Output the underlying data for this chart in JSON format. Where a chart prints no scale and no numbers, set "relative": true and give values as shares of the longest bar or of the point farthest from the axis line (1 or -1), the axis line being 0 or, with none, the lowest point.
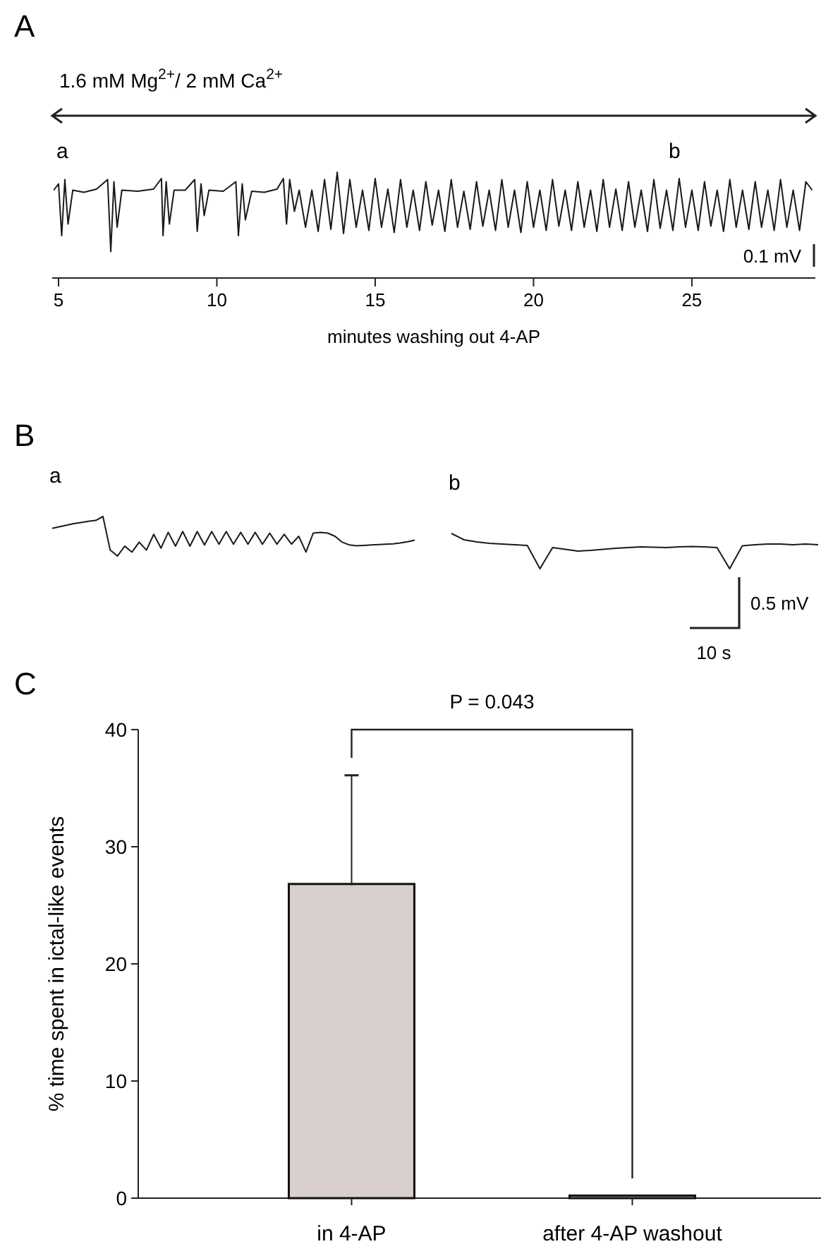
{
  "chart_data": [
    {
      "type": "line",
      "title": "A",
      "xlabel": "minutes washing out 4-AP",
      "relative": true,
      "xlim": [
        4.8,
        28.9
      ],
      "xticks": [
        5,
        10,
        15,
        20,
        25
      ],
      "annotations": [
        "1.6 mM Mg$^{2+}$/ 2 mM Ca$^{2+}$",
        "a",
        "b",
        "0.1 mV"
      ],
      "x": [
        4.85,
        5.0,
        5.1,
        5.2,
        5.3,
        5.45,
        5.8,
        6.2,
        6.55,
        6.65,
        6.75,
        6.85,
        7.0,
        7.5,
        8.0,
        8.25,
        8.3,
        8.4,
        8.5,
        8.65,
        9.0,
        9.3,
        9.38,
        9.5,
        9.6,
        9.75,
        10.2,
        10.6,
        10.68,
        10.8,
        10.9,
        11.1,
        11.5,
        11.9,
        12.1,
        12.2,
        12.3,
        12.45,
        12.6,
        12.8,
        13.0,
        13.2,
        13.4,
        13.6,
        13.8,
        14.0,
        14.2,
        14.4,
        14.6,
        14.8,
        15.0,
        15.2,
        15.4,
        15.6,
        15.8,
        16.0,
        16.2,
        16.4,
        16.6,
        16.8,
        17.0,
        17.2,
        17.4,
        17.6,
        17.8,
        18.0,
        18.2,
        18.4,
        18.6,
        18.8,
        19.0,
        19.2,
        19.4,
        19.6,
        19.8,
        20.0,
        20.2,
        20.4,
        20.6,
        20.8,
        21.0,
        21.2,
        21.4,
        21.6,
        21.8,
        22.0,
        22.2,
        22.4,
        22.6,
        22.8,
        23.0,
        23.2,
        23.4,
        23.6,
        23.8,
        24.0,
        24.2,
        24.4,
        24.6,
        24.8,
        25.0,
        25.2,
        25.4,
        25.6,
        25.8,
        26.0,
        26.2,
        26.4,
        26.6,
        26.8,
        27.0,
        27.2,
        27.4,
        27.6,
        27.8,
        28.0,
        28.2,
        28.4,
        28.6,
        28.8
      ],
      "values": [
        0.83,
        0.89,
        0.4,
        0.93,
        0.51,
        0.83,
        0.81,
        0.84,
        0.93,
        0.25,
        0.91,
        0.48,
        0.83,
        0.82,
        0.84,
        0.94,
        0.4,
        0.91,
        0.51,
        0.83,
        0.83,
        0.93,
        0.44,
        0.89,
        0.59,
        0.83,
        0.82,
        0.91,
        0.4,
        0.89,
        0.55,
        0.82,
        0.81,
        0.84,
        0.94,
        0.51,
        0.93,
        0.63,
        0.83,
        0.48,
        0.83,
        0.44,
        0.93,
        0.46,
        1.0,
        0.42,
        0.93,
        0.48,
        0.83,
        0.45,
        0.94,
        0.48,
        0.84,
        0.43,
        0.93,
        0.48,
        0.83,
        0.45,
        0.91,
        0.5,
        0.83,
        0.44,
        0.93,
        0.48,
        0.82,
        0.46,
        0.91,
        0.49,
        0.83,
        0.45,
        0.93,
        0.48,
        0.83,
        0.43,
        0.91,
        0.48,
        0.83,
        0.45,
        0.93,
        0.49,
        0.83,
        0.45,
        0.91,
        0.48,
        0.83,
        0.44,
        0.93,
        0.48,
        0.84,
        0.45,
        0.91,
        0.48,
        0.83,
        0.44,
        0.93,
        0.47,
        0.83,
        0.45,
        0.94,
        0.48,
        0.83,
        0.45,
        0.91,
        0.49,
        0.83,
        0.44,
        0.93,
        0.48,
        0.83,
        0.46,
        0.91,
        0.48,
        0.83,
        0.45,
        0.93,
        0.48,
        0.83,
        0.45,
        0.91,
        0.83
      ],
      "color": "#1a1a1a"
    },
    {
      "type": "line",
      "title": "a",
      "annotations": [
        "B"
      ],
      "relative": true,
      "categories": [
        null,
        null,
        null,
        null,
        null,
        null,
        null,
        null,
        null,
        null,
        null,
        null,
        null,
        null,
        null,
        null,
        null,
        null,
        null,
        null,
        null,
        null,
        null,
        null,
        null,
        null,
        null,
        null,
        null,
        null,
        null,
        null,
        null,
        null,
        null,
        null,
        null,
        null,
        null,
        null,
        null,
        null,
        null,
        null,
        null,
        null,
        null,
        null,
        null,
        null,
        null
      ],
      "values": [
        0.7,
        0.74,
        0.78,
        0.82,
        0.85,
        0.88,
        0.9,
        1.0,
        0.15,
        0.0,
        0.25,
        0.1,
        0.35,
        0.15,
        0.55,
        0.2,
        0.6,
        0.25,
        0.62,
        0.25,
        0.62,
        0.28,
        0.62,
        0.3,
        0.62,
        0.3,
        0.6,
        0.3,
        0.6,
        0.3,
        0.58,
        0.3,
        0.55,
        0.3,
        0.5,
        0.1,
        0.58,
        0.6,
        0.58,
        0.5,
        0.35,
        0.28,
        0.26,
        0.27,
        0.28,
        0.29,
        0.3,
        0.31,
        0.33,
        0.36,
        0.4
      ],
      "color": "#1a1a1a"
    },
    {
      "type": "line",
      "title": "b",
      "relative": true,
      "annotations": [
        "0.5 mV",
        "10 s"
      ],
      "categories": [
        null,
        null,
        null,
        null,
        null,
        null,
        null,
        null,
        null,
        null,
        null,
        null,
        null,
        null,
        null,
        null,
        null,
        null,
        null,
        null,
        null,
        null,
        null,
        null,
        null,
        null,
        null,
        null,
        null,
        null
      ],
      "values": [
        1.0,
        0.82,
        0.76,
        0.72,
        0.7,
        0.68,
        0.66,
        0.0,
        0.6,
        0.55,
        0.5,
        0.52,
        0.55,
        0.58,
        0.6,
        0.62,
        0.61,
        0.6,
        0.62,
        0.63,
        0.62,
        0.6,
        0.0,
        0.65,
        0.68,
        0.7,
        0.7,
        0.68,
        0.7,
        0.68
      ],
      "color": "#1a1a1a"
    },
    {
      "type": "bar",
      "title": "C",
      "ylabel": "% time spent in ictal-like events",
      "categories": [
        "in 4-AP",
        "after 4-AP washout"
      ],
      "values": [
        26.7,
        0.1
      ],
      "errors": [
        [
          26.7,
          36.1
        ],
        null
      ],
      "color": "#d9cfcf",
      "ylim": [
        0,
        40
      ],
      "yticks": [
        0,
        10,
        20,
        30,
        40
      ],
      "grid": false,
      "annotations": [
        "P = 0.043"
      ]
    }
  ]
}
